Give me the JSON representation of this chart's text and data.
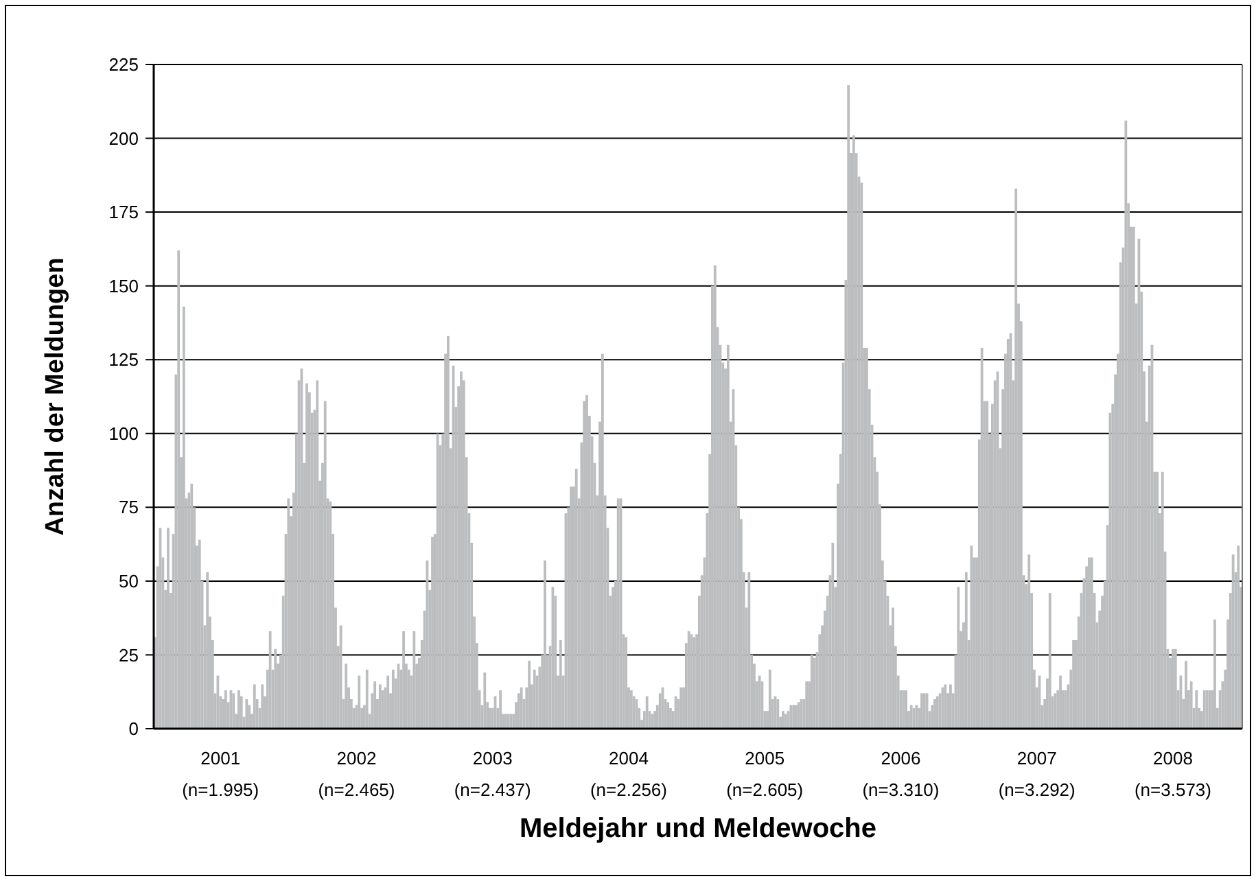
{
  "chart_data": {
    "type": "bar",
    "xlabel": "Meldejahr und Meldewoche",
    "ylabel": "Anzahl der Meldungen",
    "categories": [
      null,
      null,
      null,
      null,
      null,
      null,
      null,
      null,
      null,
      null,
      null,
      null,
      null,
      null,
      null,
      null,
      null,
      null,
      null,
      null,
      null,
      null,
      null,
      null,
      null,
      "2001",
      null,
      null,
      null,
      null,
      null,
      null,
      null,
      null,
      null,
      null,
      null,
      null,
      null,
      null,
      null,
      null,
      null,
      null,
      null,
      null,
      null,
      null,
      null,
      null,
      null,
      null,
      null,
      null,
      null,
      null,
      null,
      null,
      null,
      null,
      null,
      null,
      null,
      null,
      null,
      null,
      null,
      null,
      null,
      null,
      null,
      null,
      null,
      null,
      null,
      null,
      null,
      "2002",
      null,
      null,
      null,
      null,
      null,
      null,
      null,
      null,
      null,
      null,
      null,
      null,
      null,
      null,
      null,
      null,
      null,
      null,
      null,
      null,
      null,
      null,
      null,
      null,
      null,
      null,
      null,
      null,
      null,
      null,
      null,
      null,
      null,
      null,
      null,
      null,
      null,
      null,
      null,
      null,
      null,
      null,
      null,
      null,
      null,
      null,
      null,
      null,
      null,
      null,
      null,
      "2003",
      null,
      null,
      null,
      null,
      null,
      null,
      null,
      null,
      null,
      null,
      null,
      null,
      null,
      null,
      null,
      null,
      null,
      null,
      null,
      null,
      null,
      null,
      null,
      null,
      null,
      null,
      null,
      null,
      null,
      null,
      null,
      null,
      null,
      null,
      null,
      null,
      null,
      null,
      null,
      null,
      null,
      null,
      null,
      null,
      null,
      null,
      null,
      null,
      null,
      null,
      null,
      "2004",
      null,
      null,
      null,
      null,
      null,
      null,
      null,
      null,
      null,
      null,
      null,
      null,
      null,
      null,
      null,
      null,
      null,
      null,
      null,
      null,
      null,
      null,
      null,
      null,
      null,
      null,
      null,
      null,
      null,
      null,
      null,
      null,
      null,
      null,
      null,
      null,
      null,
      null,
      null,
      null,
      null,
      null,
      null,
      null,
      null,
      null,
      null,
      null,
      null,
      null,
      null,
      "2005",
      null,
      null,
      null,
      null,
      null,
      null,
      null,
      null,
      null,
      null,
      null,
      null,
      null,
      null,
      null,
      null,
      null,
      null,
      null,
      null,
      null,
      null,
      null,
      null,
      null,
      null,
      null,
      null,
      null,
      null,
      null,
      null,
      null,
      null,
      null,
      null,
      null,
      null,
      null,
      null,
      null,
      null,
      null,
      null,
      null,
      null,
      null,
      null,
      null,
      null,
      null,
      "2006",
      null,
      null,
      null,
      null,
      null,
      null,
      null,
      null,
      null,
      null,
      null,
      null,
      null,
      null,
      null,
      null,
      null,
      null,
      null,
      null,
      null,
      null,
      null,
      null,
      null,
      null,
      null,
      null,
      null,
      null,
      null,
      null,
      null,
      null,
      null,
      null,
      null,
      null,
      null,
      null,
      null,
      null,
      null,
      null,
      null,
      null,
      null,
      null,
      null,
      null,
      null,
      "2007",
      null,
      null,
      null,
      null,
      null,
      null,
      null,
      null,
      null,
      null,
      null,
      null,
      null,
      null,
      null,
      null,
      null,
      null,
      null,
      null,
      null,
      null,
      null,
      null,
      null,
      null,
      null,
      null,
      null,
      null,
      null,
      null,
      null,
      null,
      null,
      null,
      null,
      null,
      null,
      null,
      null,
      null,
      null,
      null,
      null,
      null,
      null,
      null,
      null,
      null,
      null,
      "2008",
      null,
      null,
      null,
      null,
      null,
      null,
      null,
      null,
      null,
      null,
      null,
      null,
      null,
      null,
      null,
      null,
      null,
      null,
      null,
      null,
      null,
      null,
      null,
      null,
      null,
      null
    ],
    "values": [
      31,
      55,
      68,
      58,
      47,
      68,
      46,
      66,
      120,
      162,
      92,
      143,
      78,
      80,
      83,
      75,
      62,
      64,
      50,
      35,
      53,
      38,
      30,
      12,
      18,
      11,
      10,
      13,
      9,
      13,
      12,
      5,
      13,
      11,
      4,
      10,
      8,
      5,
      15,
      10,
      7,
      15,
      11,
      20,
      33,
      20,
      27,
      22,
      25,
      45,
      66,
      78,
      72,
      80,
      100,
      118,
      122,
      90,
      117,
      114,
      107,
      108,
      118,
      84,
      90,
      111,
      78,
      77,
      66,
      41,
      28,
      35,
      10,
      22,
      14,
      10,
      7,
      8,
      18,
      7,
      8,
      20,
      5,
      12,
      16,
      10,
      15,
      13,
      14,
      18,
      12,
      20,
      17,
      22,
      20,
      33,
      22,
      20,
      18,
      33,
      22,
      24,
      30,
      40,
      57,
      47,
      65,
      66,
      100,
      96,
      100,
      127,
      133,
      95,
      123,
      109,
      116,
      121,
      118,
      92,
      73,
      63,
      38,
      29,
      13,
      8,
      19,
      9,
      7,
      7,
      11,
      7,
      13,
      5,
      5,
      5,
      5,
      5,
      9,
      12,
      14,
      10,
      14,
      23,
      15,
      20,
      18,
      21,
      25,
      57,
      25,
      28,
      48,
      45,
      18,
      30,
      18,
      73,
      75,
      82,
      82,
      88,
      78,
      97,
      111,
      113,
      106,
      99,
      90,
      79,
      104,
      127,
      79,
      68,
      45,
      48,
      50,
      78,
      78,
      32,
      31,
      14,
      13,
      11,
      10,
      7,
      3,
      6,
      11,
      6,
      5,
      6,
      8,
      12,
      14,
      10,
      9,
      7,
      6,
      11,
      10,
      14,
      14,
      29,
      33,
      32,
      31,
      32,
      45,
      52,
      58,
      73,
      93,
      150,
      157,
      136,
      130,
      124,
      122,
      130,
      104,
      115,
      96,
      75,
      71,
      53,
      41,
      53,
      25,
      22,
      16,
      18,
      16,
      6,
      6,
      20,
      10,
      11,
      10,
      4,
      6,
      5,
      6,
      8,
      8,
      8,
      9,
      10,
      10,
      16,
      16,
      25,
      24,
      26,
      32,
      35,
      40,
      45,
      52,
      63,
      48,
      83,
      93,
      124,
      152,
      218,
      195,
      201,
      195,
      187,
      185,
      129,
      129,
      115,
      103,
      92,
      87,
      76,
      57,
      50,
      45,
      35,
      41,
      28,
      18,
      13,
      13,
      13,
      6,
      8,
      7,
      8,
      7,
      12,
      12,
      12,
      6,
      8,
      10,
      11,
      12,
      14,
      15,
      12,
      15,
      12,
      25,
      48,
      33,
      36,
      53,
      30,
      62,
      58,
      58,
      98,
      129,
      111,
      111,
      100,
      110,
      118,
      121,
      95,
      115,
      127,
      132,
      134,
      118,
      183,
      144,
      138,
      52,
      49,
      59,
      46,
      20,
      14,
      18,
      8,
      10,
      17,
      46,
      11,
      12,
      13,
      18,
      13,
      13,
      15,
      20,
      30,
      30,
      38,
      46,
      51,
      55,
      58,
      58,
      46,
      36,
      40,
      45,
      50,
      69,
      107,
      110,
      120,
      127,
      158,
      163,
      206,
      178,
      170,
      170,
      144,
      166,
      148,
      121,
      104,
      123,
      130,
      87,
      87,
      73,
      87,
      60,
      27,
      24,
      27,
      27,
      13,
      18,
      10,
      23,
      13,
      16,
      7,
      13,
      7,
      6,
      13,
      13,
      13,
      13,
      37,
      7,
      13,
      16,
      20,
      37,
      46,
      59,
      53,
      62,
      48
    ],
    "color": "#bcbdbf",
    "ylim": [
      0,
      225
    ],
    "yticks": [
      0,
      25,
      50,
      75,
      100,
      125,
      150,
      175,
      200,
      225
    ],
    "grid": "y",
    "annotations": [
      "(n=1.995)",
      "(n=2.465)",
      "(n=2.437)",
      "(n=2.256)",
      "(n=2.605)",
      "(n=3.310)",
      "(n=3.292)",
      "(n=3.573)"
    ]
  }
}
